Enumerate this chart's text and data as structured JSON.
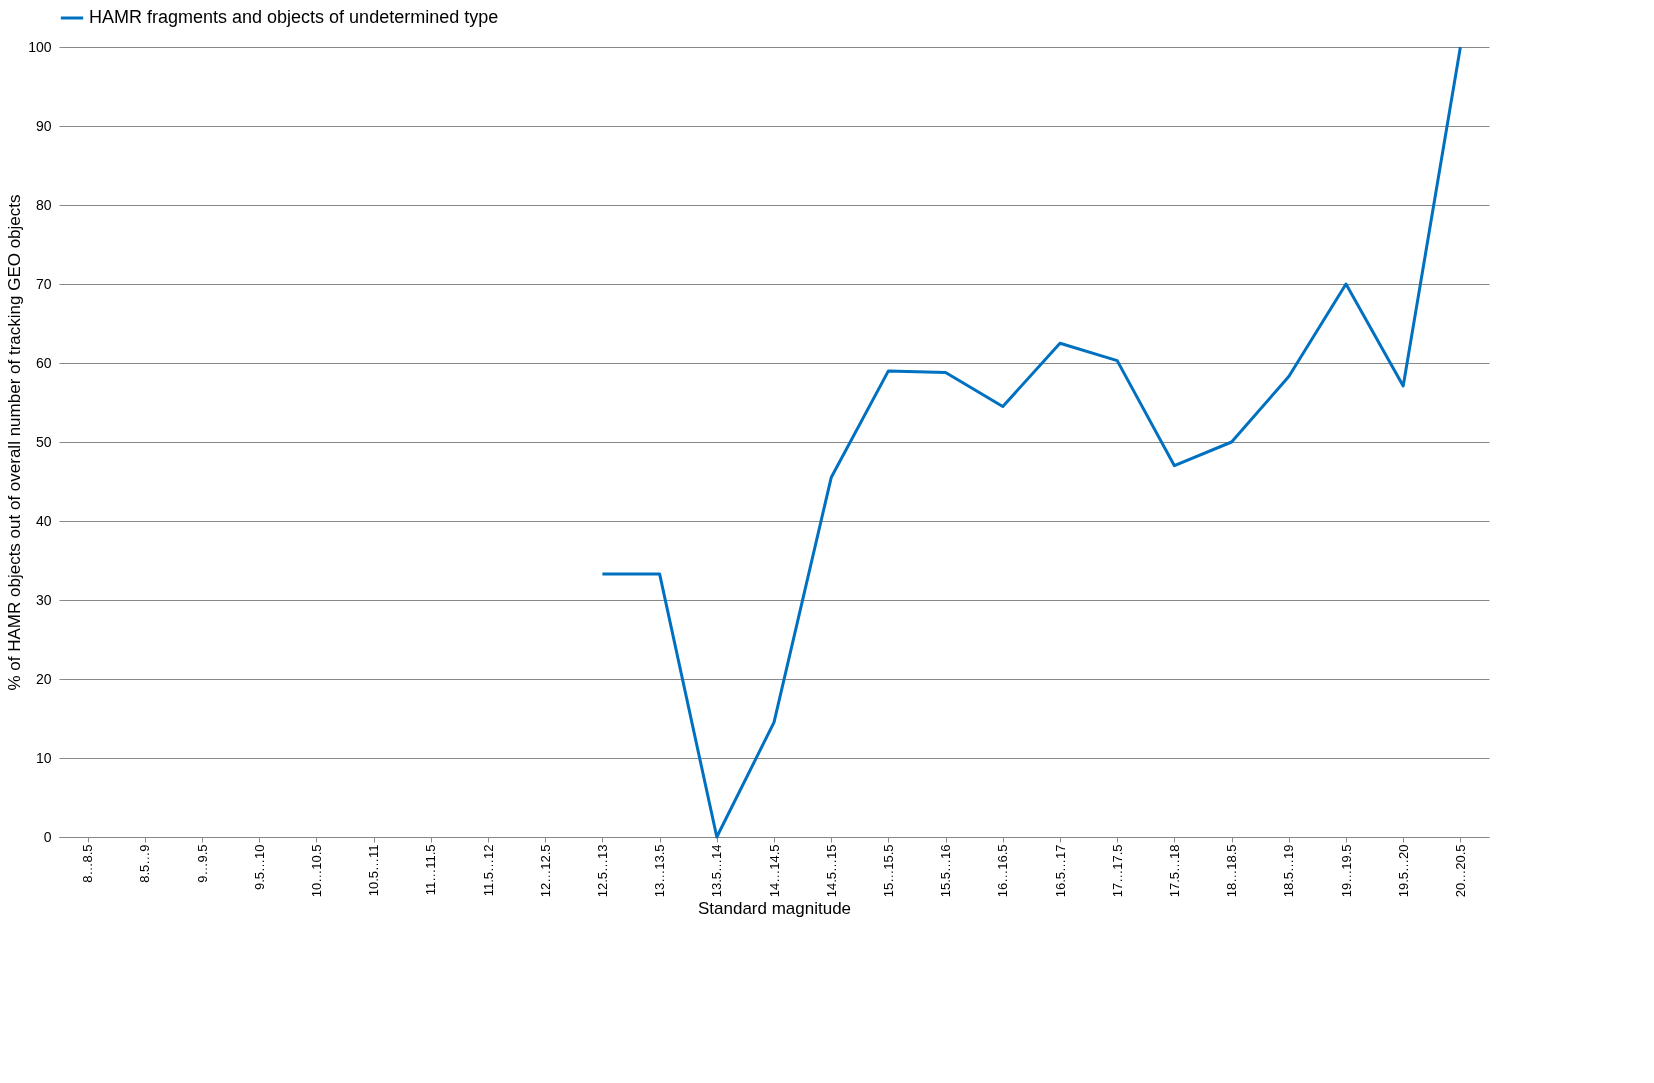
{
  "chart_data": {
    "type": "line",
    "xlabel": "Standard magnitude",
    "ylabel": "% of HAMR objects out of overall number of tracking GEO objects",
    "categories": [
      "8…8.5",
      "8.5…9",
      "9…9.5",
      "9.5…10",
      "10…10.5",
      "10.5…11",
      "11…11.5",
      "11.5…12",
      "12…12.5",
      "12.5…13",
      "13…13.5",
      "13.5…14",
      "14…14.5",
      "14.5…15",
      "15…15.5",
      "15.5…16",
      "16…16.5",
      "16.5…17",
      "17…17.5",
      "17.5…18",
      "18…18.5",
      "18.5…19",
      "19…19.5",
      "19.5…20",
      "20…20.5"
    ],
    "series": [
      {
        "name": "HAMR fragments and objects of undetermined type",
        "color": "#0070c0",
        "values": [
          null,
          null,
          null,
          null,
          null,
          null,
          null,
          null,
          null,
          33.3,
          33.3,
          0,
          14.5,
          45.5,
          59,
          58.8,
          54.5,
          62.5,
          60.3,
          47,
          50,
          58.3,
          70,
          57.1,
          100
        ]
      }
    ],
    "ylim": [
      0,
      100
    ],
    "yticks": [
      0,
      10,
      20,
      30,
      40,
      50,
      60,
      70,
      80,
      90,
      100
    ],
    "grid": "y",
    "legend": "top",
    "marker": "none",
    "line_style": "solid"
  }
}
